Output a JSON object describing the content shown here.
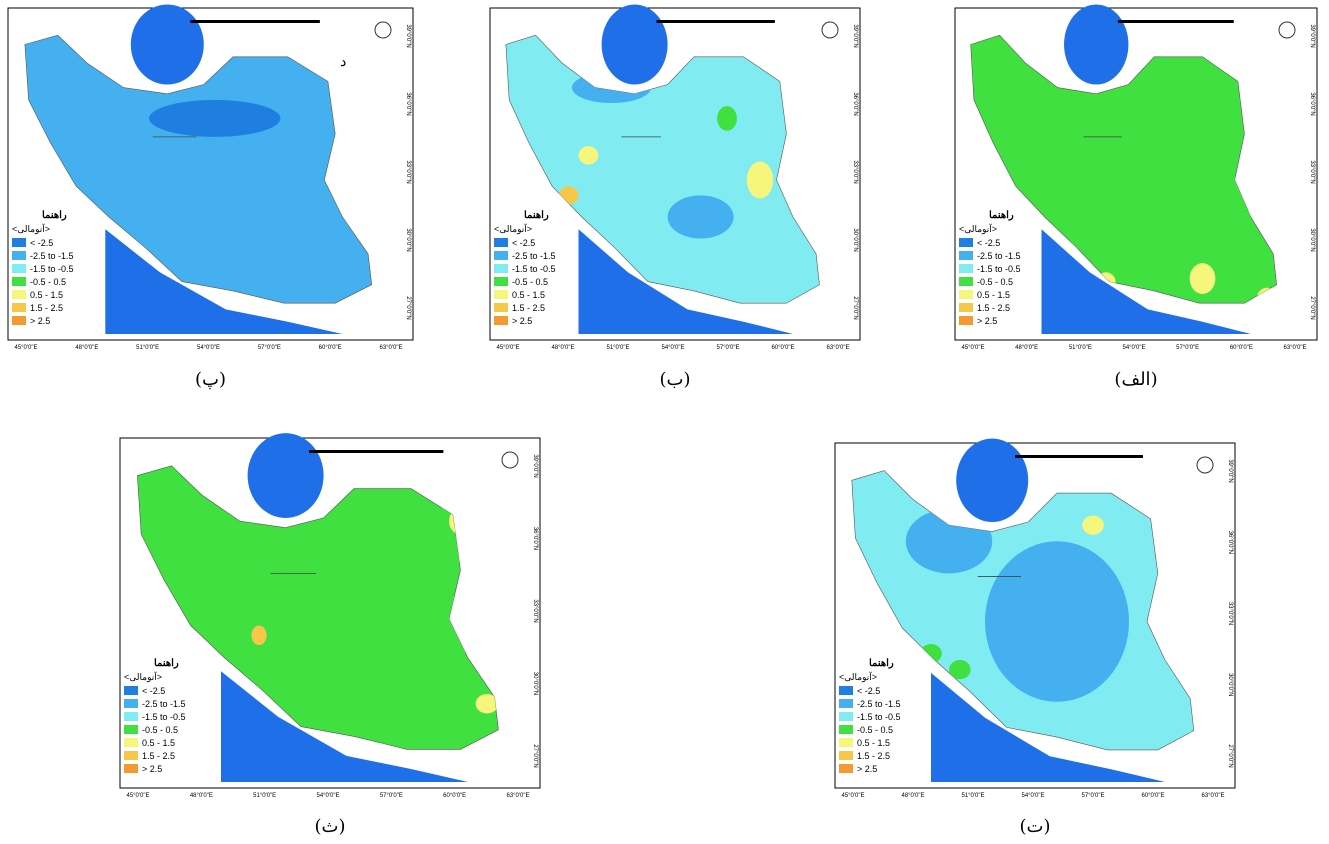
{
  "panels": [
    {
      "caption": "(پ)",
      "mark": "د"
    },
    {
      "caption": "(ب)"
    },
    {
      "caption": "(الف)"
    },
    {
      "caption": "(ث)"
    },
    {
      "caption": "(ت)"
    }
  ],
  "legend": {
    "title": "راهنما",
    "subtitle": "<آنومالی>",
    "items": [
      {
        "label": "< -2.5",
        "color": "#1f7fe0"
      },
      {
        "label": "-2.5 to -1.5",
        "color": "#45b0ef"
      },
      {
        "label": "-1.5 to -0.5",
        "color": "#80ecf2"
      },
      {
        "label": "-0.5 - 0.5",
        "color": "#3fe03f"
      },
      {
        "label": "0.5 - 1.5",
        "color": "#f6f67c"
      },
      {
        "label": "1.5 - 2.5",
        "color": "#f5c84a"
      },
      {
        "label": "> 2.5",
        "color": "#f59a30"
      }
    ]
  },
  "longitudes": [
    "45°0'0\"E",
    "48°0'0\"E",
    "51°0'0\"E",
    "54°0'0\"E",
    "57°0'0\"E",
    "60°0'0\"E",
    "63°0'0\"E"
  ],
  "latitudes": [
    "39°0'0\"N",
    "36°0'0\"N",
    "33°0'0\"N",
    "30°0'0\"N",
    "27°0'0\"N"
  ]
}
